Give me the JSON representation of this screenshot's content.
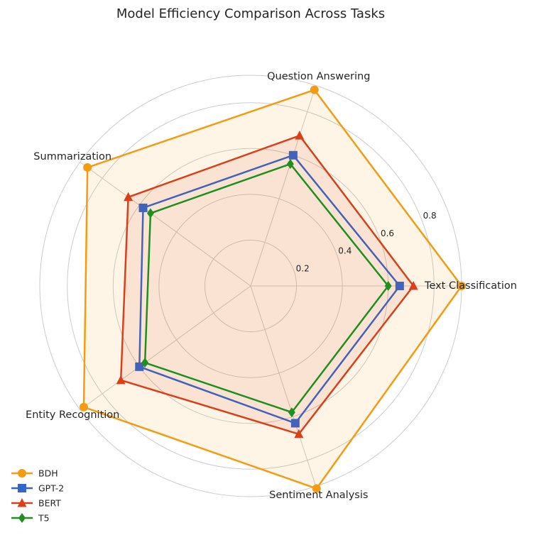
{
  "chart_data": {
    "type": "radar",
    "title": "Model Efficiency Comparison Across Tasks",
    "axes": [
      "Text Classification",
      "Question Answering",
      "Summarization",
      "Entity Recognition",
      "Sentiment Analysis"
    ],
    "rlim": [
      0,
      0.92
    ],
    "rticks": [
      0.2,
      0.4,
      0.6,
      0.8
    ],
    "rtick_labels": [
      "0.2",
      "0.4",
      "0.6",
      "0.8"
    ],
    "grid": true,
    "legend_position": "lower-left",
    "series": [
      {
        "name": "BDH",
        "values": [
          0.92,
          0.9,
          0.88,
          0.9,
          0.93
        ],
        "color": "#f39c12",
        "marker": "circle",
        "fill": true
      },
      {
        "name": "GPT-2",
        "values": [
          0.65,
          0.6,
          0.58,
          0.6,
          0.63
        ],
        "color": "#3366cc",
        "marker": "square",
        "fill": false
      },
      {
        "name": "BERT",
        "values": [
          0.71,
          0.69,
          0.66,
          0.7,
          0.68
        ],
        "color": "#d9401a",
        "marker": "triangle",
        "fill": true
      },
      {
        "name": "T5",
        "values": [
          0.6,
          0.56,
          0.54,
          0.57,
          0.58
        ],
        "color": "#1f8f1f",
        "marker": "diamond",
        "fill": false
      }
    ]
  }
}
